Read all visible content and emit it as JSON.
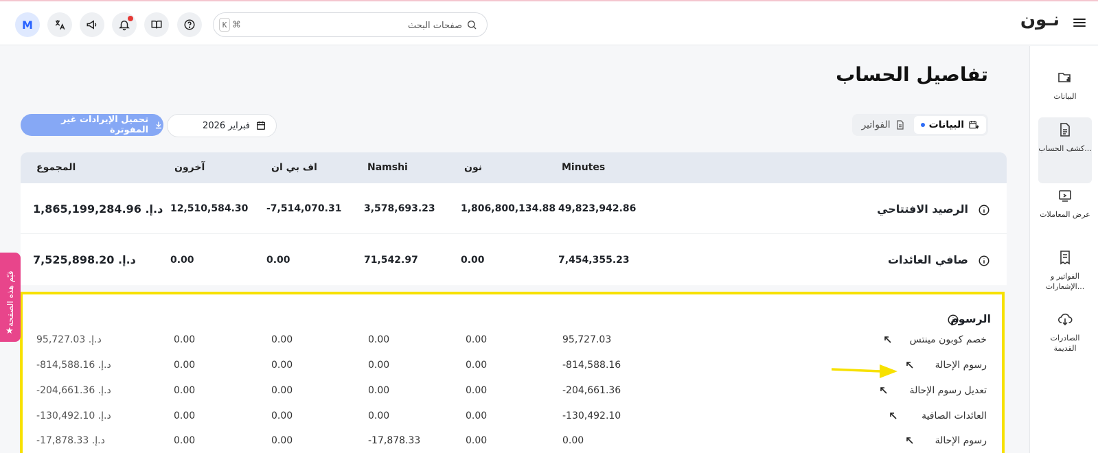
{
  "header": {
    "logo": "نـون",
    "search": {
      "placeholder": "صفحات البحث",
      "shortcut_key": "K",
      "shortcut_cmd": "⌘"
    },
    "avatar_letter": "M"
  },
  "sidebar": {
    "items": [
      {
        "label": "البيانات"
      },
      {
        "label": "كشف الحساب...",
        "active": true
      },
      {
        "label": "عرض المعاملات"
      },
      {
        "label": "الفواتير و الإشعارات..."
      },
      {
        "label": "الصادرات القديمة"
      }
    ]
  },
  "page": {
    "title": "تفاصيل الحساب",
    "tabs": [
      {
        "label": "البيانات",
        "active": true
      },
      {
        "label": "الفواتير"
      }
    ],
    "date": "فبراير 2026",
    "download_label": "تحميل الإيرادات غير المفوترة",
    "feedback_label": "قيّم هذه الصفحة"
  },
  "table": {
    "columns": [
      "Minutes",
      "نون",
      "Namshi",
      "اف بي ان",
      "آخرون",
      "المجموع"
    ],
    "summary_rows": [
      {
        "label": "الرصيد الافتتاحي",
        "values": [
          "49,823,942.86",
          "1,806,800,134.88",
          "3,578,693.23",
          "-7,514,070.31",
          "12,510,584.30"
        ],
        "total": "د.إ. 1,865,199,284.96"
      },
      {
        "label": "صافي العائدات",
        "values": [
          "7,454,355.23",
          "0.00",
          "71,542.97",
          "0.00",
          "0.00"
        ],
        "total": "د.إ. 7,525,898.20"
      }
    ],
    "fees": {
      "title": "الرسوم",
      "rows": [
        {
          "label": "خصم كوبون مينتس",
          "values": [
            "95,727.03",
            "0.00",
            "0.00",
            "0.00",
            "0.00"
          ],
          "total": "د.إ. 95,727.03"
        },
        {
          "label": "رسوم الإحالة",
          "values": [
            "-814,588.16",
            "0.00",
            "0.00",
            "0.00",
            "0.00"
          ],
          "total": "د.إ. 814,588.16-"
        },
        {
          "label": "تعديل رسوم الإحالة",
          "values": [
            "-204,661.36",
            "0.00",
            "0.00",
            "0.00",
            "0.00"
          ],
          "total": "د.إ. 204,661.36-"
        },
        {
          "label": "العائدات الصافية",
          "values": [
            "-130,492.10",
            "0.00",
            "0.00",
            "0.00",
            "0.00"
          ],
          "total": "د.إ. 130,492.10-"
        },
        {
          "label": "رسوم الإحالة",
          "values": [
            "0.00",
            "0.00",
            "-17,878.33",
            "0.00",
            "0.00"
          ],
          "total": "د.إ. 17,878.33-"
        }
      ]
    }
  },
  "colors": {
    "accent": "#2f6df6",
    "highlight": "#f7e100",
    "feedback": "#e8458b",
    "download_btn": "#86a8f5"
  }
}
